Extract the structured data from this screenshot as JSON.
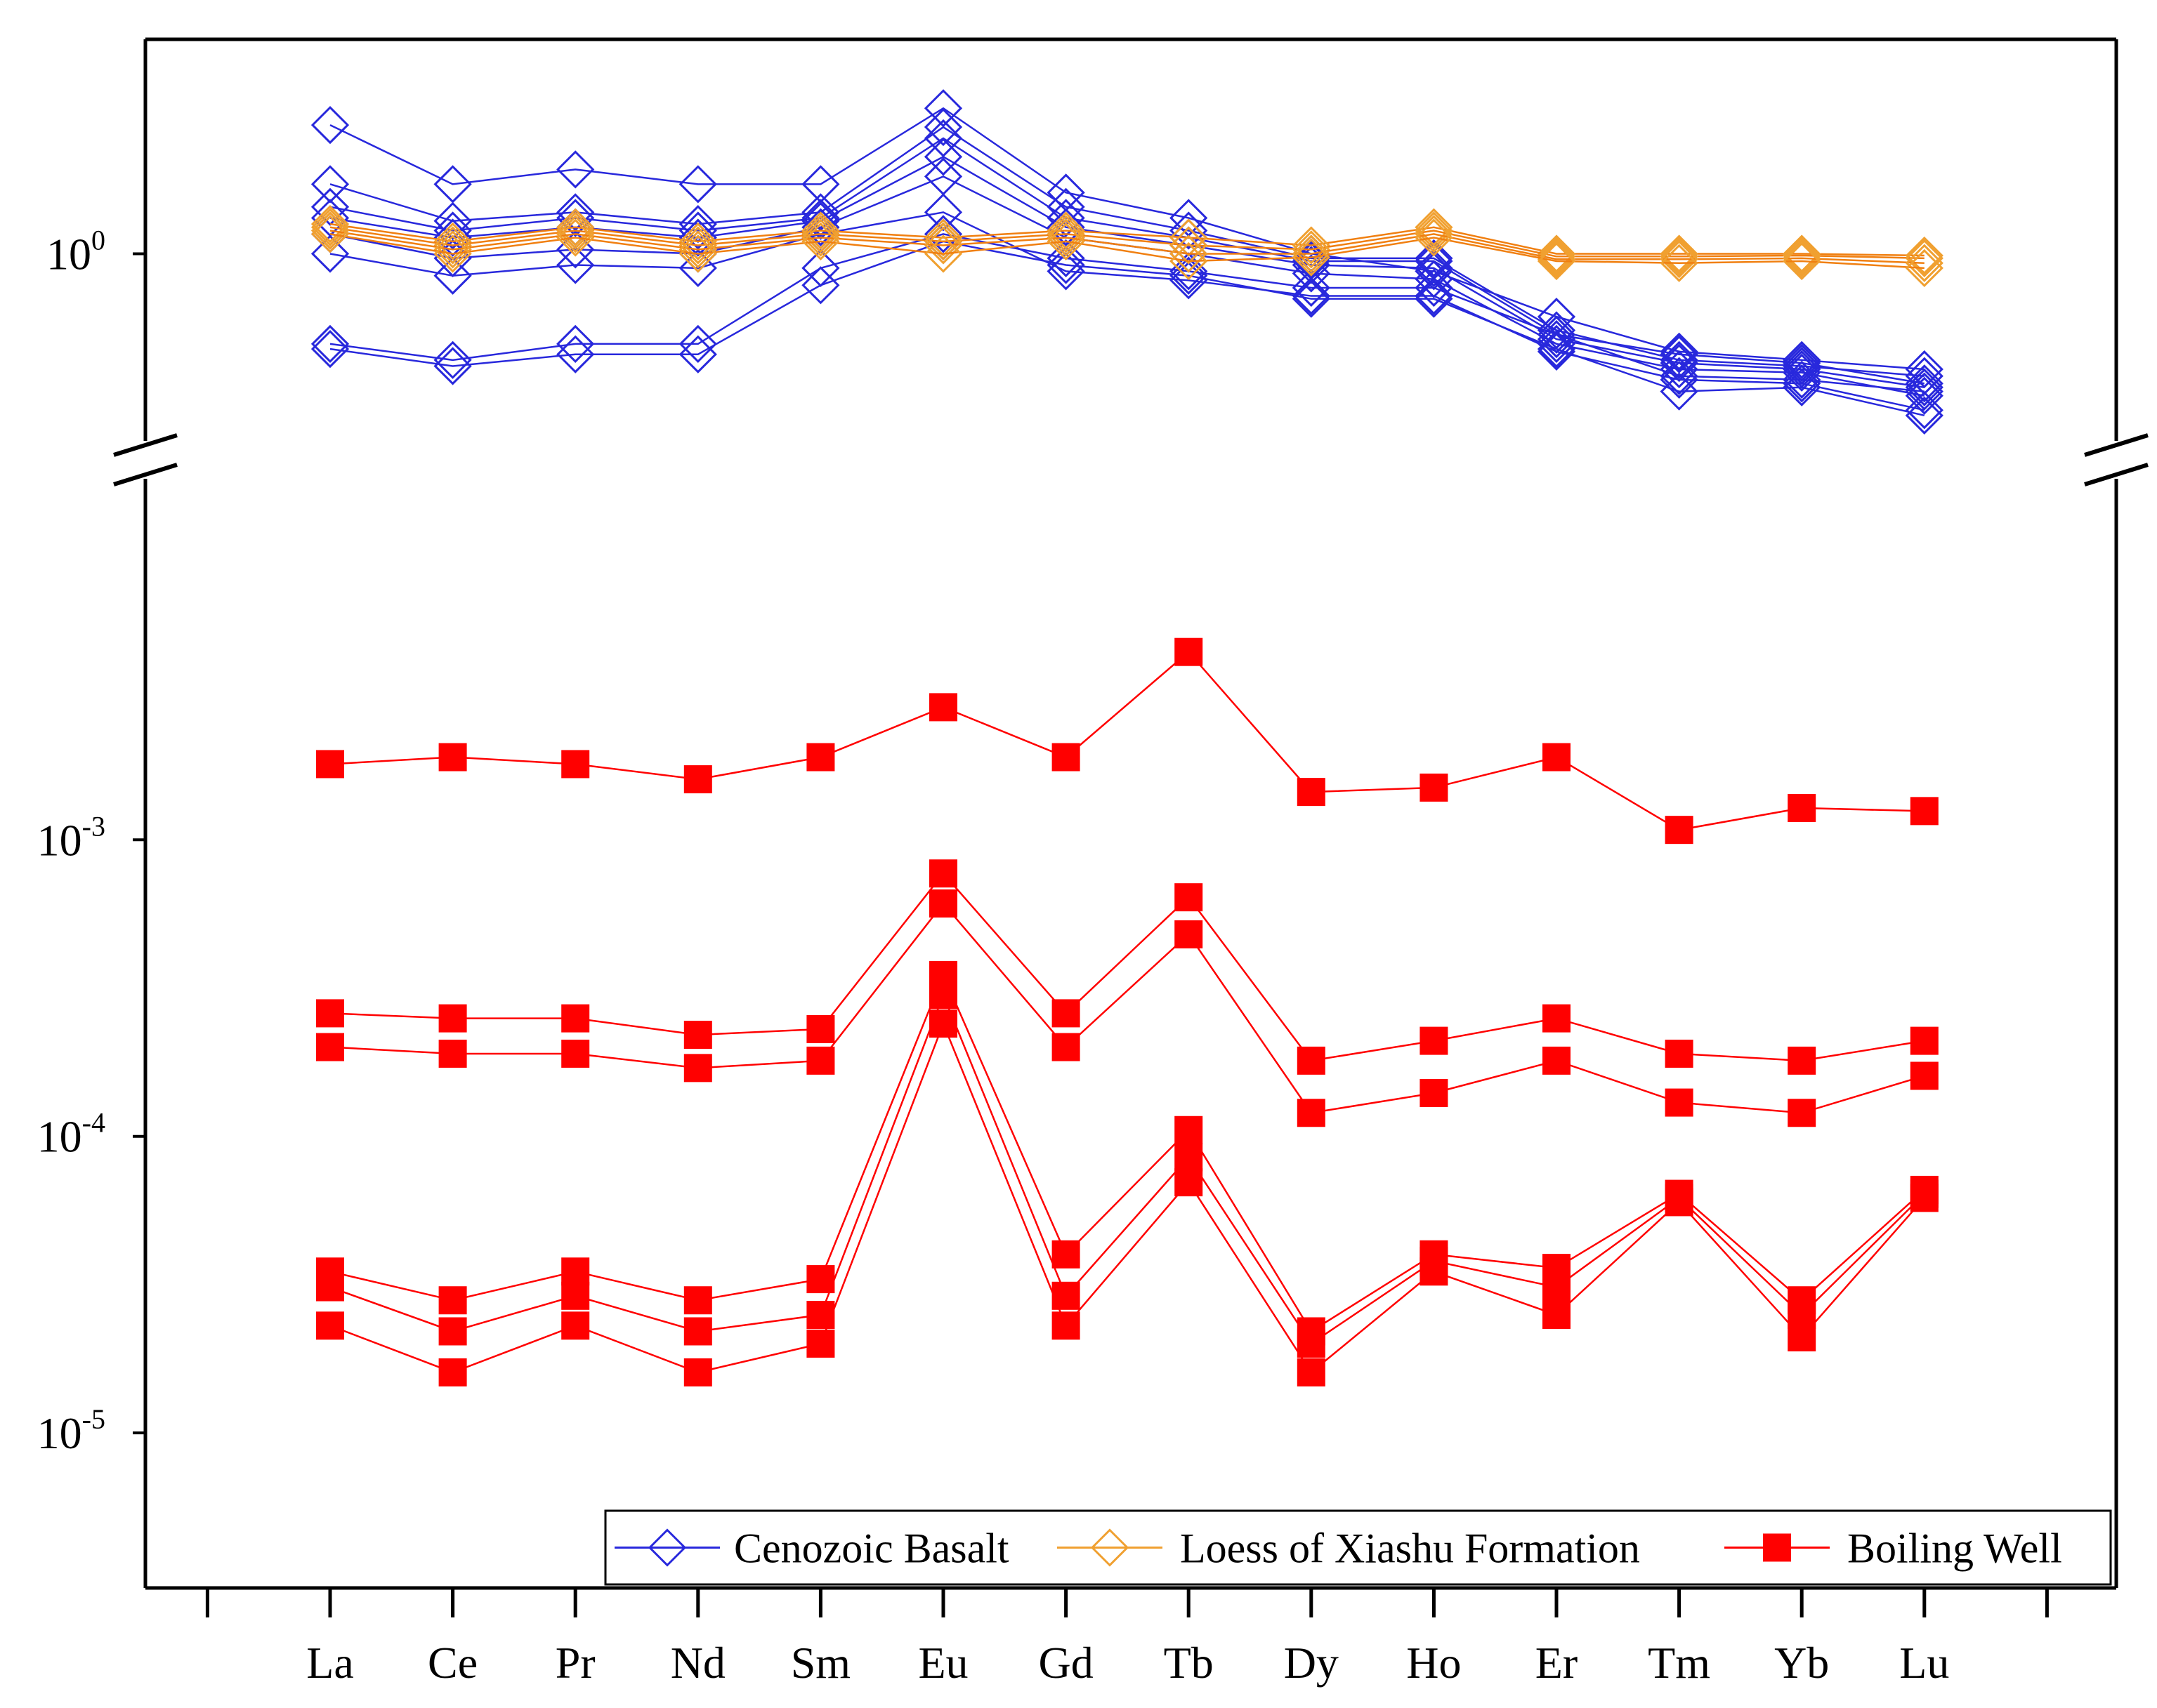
{
  "chart_data": {
    "type": "line",
    "title": "",
    "xlabel": "",
    "ylabel": "",
    "yscale": "log",
    "axis_break": "between 10^0 panel and 10^-3 panel",
    "categories": [
      "La",
      "Ce",
      "Pr",
      "Nd",
      "Sm",
      "Eu",
      "Gd",
      "Tb",
      "Dy",
      "Ho",
      "Er",
      "Tm",
      "Yb",
      "Lu"
    ],
    "upper_panel": {
      "ylim": [
        0.12,
        10
      ],
      "ytick_labels": [
        {
          "base": "10",
          "exp": "0",
          "value": 1
        }
      ]
    },
    "lower_panel": {
      "ylim": [
        3e-06,
        0.0165
      ],
      "ytick_labels": [
        {
          "base": "10",
          "exp": "-3",
          "value": 0.001
        },
        {
          "base": "10",
          "exp": "-4",
          "value": 0.0001
        },
        {
          "base": "10",
          "exp": "-5",
          "value": 1e-05
        }
      ]
    },
    "legend": {
      "placement": "bottom-right",
      "entries": [
        {
          "label": "Cenozoic Basalt",
          "color": "#2828dc",
          "marker": "open-diamond"
        },
        {
          "label": "Loess of Xiashu Formation",
          "color": "#f0a030",
          "marker": "open-diamond"
        },
        {
          "label": "Boiling Well",
          "color": "#ff0000",
          "marker": "filled-square"
        }
      ]
    },
    "series": [
      {
        "group": "Cenozoic Basalt",
        "panel": "upper",
        "values": [
          4.3,
          2.2,
          2.6,
          2.2,
          2.2,
          5.2,
          2.0,
          1.5,
          1.0,
          0.82,
          0.49,
          0.33,
          0.3,
          0.27
        ]
      },
      {
        "group": "Cenozoic Basalt",
        "panel": "upper",
        "values": [
          2.2,
          1.45,
          1.6,
          1.4,
          1.6,
          4.2,
          1.7,
          1.3,
          0.95,
          0.95,
          0.42,
          0.3,
          0.28,
          0.25
        ]
      },
      {
        "group": "Cenozoic Basalt",
        "panel": "upper",
        "values": [
          1.7,
          1.3,
          1.5,
          1.3,
          1.5,
          3.7,
          1.5,
          1.2,
          0.92,
          0.92,
          0.4,
          0.32,
          0.29,
          0.23
        ]
      },
      {
        "group": "Cenozoic Basalt",
        "panel": "upper",
        "values": [
          1.5,
          1.2,
          1.35,
          1.2,
          1.45,
          3.0,
          1.35,
          1.1,
          0.88,
          0.85,
          0.38,
          0.29,
          0.27,
          0.22
        ]
      },
      {
        "group": "Cenozoic Basalt",
        "panel": "upper",
        "values": [
          1.25,
          0.95,
          1.05,
          1.0,
          1.35,
          2.4,
          1.2,
          1.0,
          0.8,
          0.75,
          0.36,
          0.27,
          0.26,
          0.2
        ]
      },
      {
        "group": "Cenozoic Basalt",
        "panel": "upper",
        "values": [
          1.0,
          0.78,
          0.88,
          0.85,
          1.25,
          1.6,
          0.82,
          0.74,
          0.62,
          0.62,
          0.33,
          0.24,
          0.23,
          0.17
        ]
      },
      {
        "group": "Cenozoic Basalt",
        "panel": "upper",
        "values": [
          0.36,
          0.3,
          0.36,
          0.36,
          0.85,
          1.25,
          0.95,
          0.82,
          0.68,
          0.68,
          0.4,
          0.25,
          0.24,
          0.21
        ]
      },
      {
        "group": "Cenozoic Basalt",
        "panel": "upper",
        "values": [
          0.34,
          0.28,
          0.32,
          0.32,
          0.7,
          1.15,
          0.88,
          0.78,
          0.6,
          0.6,
          0.34,
          0.21,
          0.22,
          0.16
        ]
      },
      {
        "group": "Loess of Xiashu Formation",
        "panel": "upper",
        "values": [
          1.4,
          1.15,
          1.35,
          1.15,
          1.3,
          1.2,
          1.3,
          1.2,
          1.1,
          1.35,
          1.0,
          1.0,
          1.0,
          0.98
        ]
      },
      {
        "group": "Loess of Xiashu Formation",
        "panel": "upper",
        "values": [
          1.35,
          1.1,
          1.3,
          1.1,
          1.25,
          1.15,
          1.25,
          1.1,
          1.05,
          1.3,
          0.97,
          0.97,
          0.98,
          0.95
        ]
      },
      {
        "group": "Loess of Xiashu Formation",
        "panel": "upper",
        "values": [
          1.3,
          1.05,
          1.25,
          1.05,
          1.2,
          1.1,
          1.2,
          1.0,
          1.0,
          1.25,
          0.94,
          0.94,
          0.95,
          0.9
        ]
      },
      {
        "group": "Loess of Xiashu Formation",
        "panel": "upper",
        "values": [
          1.25,
          1.0,
          1.2,
          1.0,
          1.15,
          1.0,
          1.15,
          0.92,
          0.96,
          1.2,
          0.92,
          0.9,
          0.92,
          0.85
        ]
      },
      {
        "group": "Boiling Well",
        "panel": "lower",
        "values": [
          0.0018,
          0.0019,
          0.0018,
          0.0016,
          0.0019,
          0.0028,
          0.0019,
          0.0043,
          0.00145,
          0.0015,
          0.0019,
          0.00108,
          0.00128,
          0.00125
        ]
      },
      {
        "group": "Boiling Well",
        "panel": "lower",
        "values": [
          0.00026,
          0.00025,
          0.00025,
          0.00022,
          0.00023,
          0.00077,
          0.00026,
          0.00064,
          0.00018,
          0.00021,
          0.00025,
          0.00019,
          0.00018,
          0.00021
        ]
      },
      {
        "group": "Boiling Well",
        "panel": "lower",
        "values": [
          0.0002,
          0.00019,
          0.00019,
          0.00017,
          0.00018,
          0.00061,
          0.0002,
          0.00048,
          0.00012,
          0.00014,
          0.00018,
          0.00013,
          0.00012,
          0.00016
        ]
      },
      {
        "group": "Boiling Well",
        "panel": "lower",
        "values": [
          3.5e-05,
          2.8e-05,
          3.5e-05,
          2.8e-05,
          3.3e-05,
          0.00035,
          4e-05,
          0.000105,
          2.2e-05,
          4e-05,
          3.6e-05,
          6.4e-05,
          2.8e-05,
          6.6e-05
        ]
      },
      {
        "group": "Boiling Well",
        "panel": "lower",
        "values": [
          3.1e-05,
          2.2e-05,
          2.9e-05,
          2.2e-05,
          2.5e-05,
          0.0003,
          2.9e-05,
          8.5e-05,
          2e-05,
          3.8e-05,
          3.1e-05,
          6.2e-05,
          2.5e-05,
          6.4e-05
        ]
      },
      {
        "group": "Boiling Well",
        "panel": "lower",
        "values": [
          2.3e-05,
          1.6e-05,
          2.3e-05,
          1.6e-05,
          2e-05,
          0.00024,
          2.3e-05,
          7e-05,
          1.6e-05,
          3.5e-05,
          2.5e-05,
          6e-05,
          2.1e-05,
          6.2e-05
        ]
      }
    ]
  }
}
